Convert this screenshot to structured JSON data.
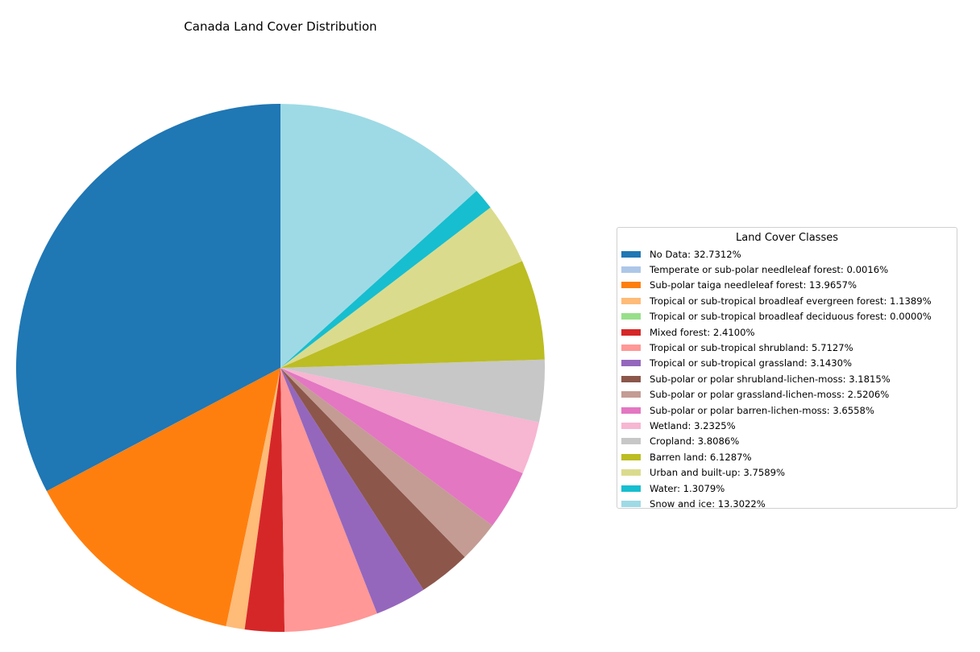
{
  "chart_data": {
    "type": "pie",
    "title": "Canada Land Cover Distribution",
    "legend_title": "Land Cover Classes",
    "legend_placement": "right",
    "start_angle_deg": 90,
    "direction": "counterclockwise",
    "slices": [
      {
        "label": "No Data: 32.7312%",
        "value": 32.7312,
        "color": "#1f77b4"
      },
      {
        "label": "Temperate or sub-polar needleleaf forest: 0.0016%",
        "value": 0.0016,
        "color": "#aec7e8"
      },
      {
        "label": "Sub-polar taiga needleleaf forest: 13.9657%",
        "value": 13.9657,
        "color": "#ff7f0e"
      },
      {
        "label": "Tropical or sub-tropical broadleaf evergreen forest: 1.1389%",
        "value": 1.1389,
        "color": "#ffbb78"
      },
      {
        "label": "Tropical or sub-tropical broadleaf deciduous forest: 0.0000%",
        "value": 0.0,
        "color": "#98df8a"
      },
      {
        "label": "Mixed forest: 2.4100%",
        "value": 2.41,
        "color": "#d62728"
      },
      {
        "label": "Tropical or sub-tropical shrubland: 5.7127%",
        "value": 5.7127,
        "color": "#ff9896"
      },
      {
        "label": "Tropical or sub-tropical grassland: 3.1430%",
        "value": 3.143,
        "color": "#9467bd"
      },
      {
        "label": "Sub-polar or polar shrubland-lichen-moss: 3.1815%",
        "value": 3.1815,
        "color": "#8c564b"
      },
      {
        "label": "Sub-polar or polar grassland-lichen-moss: 2.5206%",
        "value": 2.5206,
        "color": "#c49c94"
      },
      {
        "label": "Sub-polar or polar barren-lichen-moss: 3.6558%",
        "value": 3.6558,
        "color": "#e377c2"
      },
      {
        "label": "Wetland: 3.2325%",
        "value": 3.2325,
        "color": "#f7b6d2"
      },
      {
        "label": "Cropland: 3.8086%",
        "value": 3.8086,
        "color": "#c7c7c7"
      },
      {
        "label": "Barren land: 6.1287%",
        "value": 6.1287,
        "color": "#bcbd22"
      },
      {
        "label": "Urban and built-up: 3.7589%",
        "value": 3.7589,
        "color": "#dbdb8d"
      },
      {
        "label": "Water: 1.3079%",
        "value": 1.3079,
        "color": "#17becf"
      },
      {
        "label": "Snow and ice: 13.3022%",
        "value": 13.3022,
        "color": "#9edae5"
      }
    ]
  }
}
